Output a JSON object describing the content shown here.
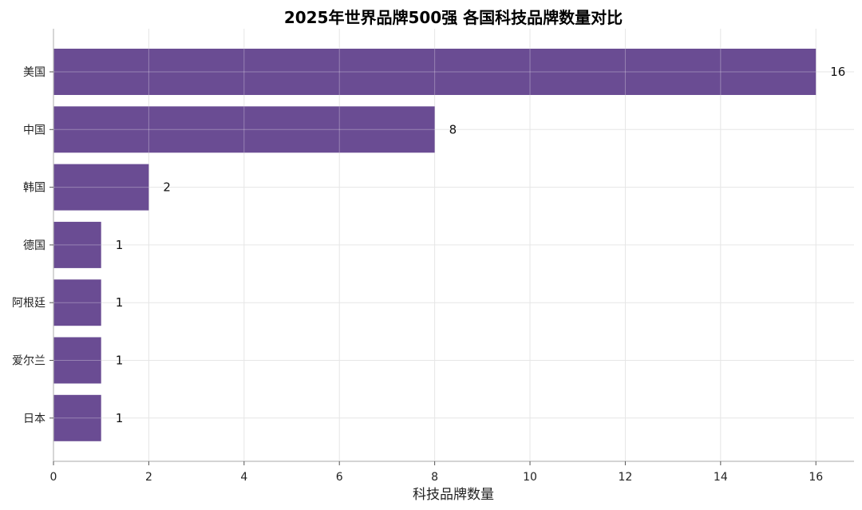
{
  "chart_data": {
    "type": "bar",
    "orientation": "horizontal",
    "title": "2025年世界品牌500强 各国科技品牌数量对比",
    "xlabel": "科技品牌数量",
    "ylabel": "",
    "categories": [
      "美国",
      "中国",
      "韩国",
      "德国",
      "阿根廷",
      "爱尔兰",
      "日本"
    ],
    "values": [
      16,
      8,
      2,
      1,
      1,
      1,
      1
    ],
    "data_labels": [
      "16",
      "8",
      "2",
      "1",
      "1",
      "1",
      "1"
    ],
    "xlim": [
      0,
      16.8
    ],
    "xticks": [
      0,
      2,
      4,
      6,
      8,
      10,
      12,
      14,
      16
    ],
    "xtick_labels": [
      "0",
      "2",
      "4",
      "6",
      "8",
      "10",
      "12",
      "14",
      "16"
    ],
    "grid": true,
    "legend": "none",
    "colors": {
      "bar": "#6a4c93",
      "grid": "#e6e6e6",
      "axis": "#bbbbbb"
    }
  }
}
